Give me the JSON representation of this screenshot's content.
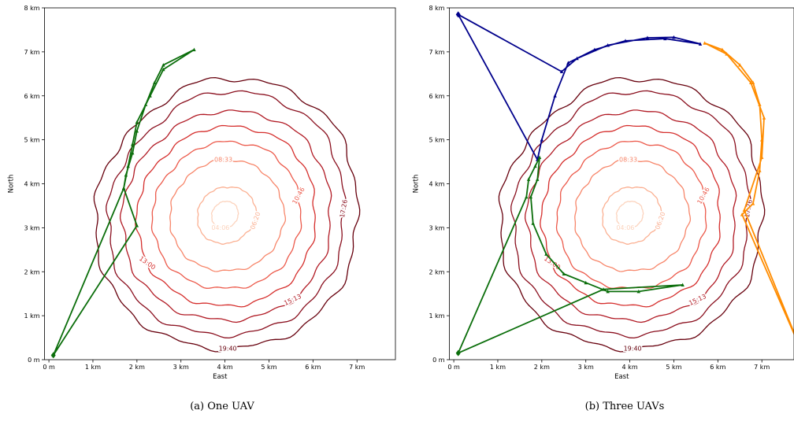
{
  "chart_data": [
    {
      "type": "line",
      "caption": "(a) One UAV",
      "xlabel": "East",
      "ylabel": "North",
      "xlim": [
        -0.1,
        7.9
      ],
      "ylim": [
        0,
        8
      ],
      "x_ticks": [
        "0 m",
        "1 km",
        "2 km",
        "3 km",
        "4 km",
        "5 km",
        "6 km",
        "7 km"
      ],
      "y_ticks": [
        "0 m",
        "1 km",
        "2 km",
        "3 km",
        "4 km",
        "5 km",
        "6 km",
        "7 km",
        "8 km"
      ],
      "contours": [
        {
          "label": "04:06",
          "color": "#fcd3bd",
          "r": [
            0.3,
            0.32,
            0.3,
            0.28,
            0.3,
            0.33,
            0.31,
            0.29
          ]
        },
        {
          "label": "06:20",
          "color": "#fbb092",
          "r": [
            0.72,
            0.7,
            0.62,
            0.6,
            0.62,
            0.68,
            0.66,
            0.64
          ]
        },
        {
          "label": "08:33",
          "color": "#f7866a",
          "r": [
            1.35,
            1.3,
            1.25,
            1.2,
            1.25,
            1.3,
            1.28,
            1.33
          ]
        },
        {
          "label": "10:46",
          "color": "#ec5a4b",
          "r": [
            1.72,
            1.75,
            1.65,
            1.58,
            1.65,
            1.72,
            1.68,
            1.74
          ]
        },
        {
          "label": "13:00",
          "color": "#d52e2c",
          "r": [
            2.05,
            2.12,
            2.0,
            1.92,
            2.0,
            2.1,
            2.08,
            2.12
          ]
        },
        {
          "label": "15:13",
          "color": "#b11a24",
          "r": [
            2.4,
            2.48,
            2.35,
            2.25,
            2.33,
            2.45,
            2.4,
            2.48
          ]
        },
        {
          "label": "17:26",
          "color": "#8a0f1e",
          "r": [
            2.7,
            2.9,
            2.8,
            2.55,
            2.65,
            2.8,
            2.74,
            2.78
          ]
        },
        {
          "label": "19:40",
          "color": "#67000d",
          "r": [
            3.0,
            3.2,
            3.1,
            2.85,
            2.95,
            3.1,
            3.05,
            3.1
          ]
        }
      ],
      "contour_center": [
        4.0,
        3.3
      ],
      "series": [
        {
          "color": "#0b6e0b",
          "markers": true,
          "x": [
            0.1,
            1.7,
            1.75,
            1.9,
            2.0,
            2.2,
            2.4,
            2.6,
            3.3,
            2.6,
            2.3,
            2.0,
            1.9,
            1.8,
            1.7,
            2.0,
            0.1
          ],
          "y": [
            0.1,
            3.9,
            4.2,
            4.7,
            5.2,
            5.8,
            6.3,
            6.7,
            7.05,
            6.6,
            6.0,
            5.4,
            4.9,
            4.4,
            3.9,
            3.05,
            0.1
          ]
        }
      ]
    },
    {
      "type": "line",
      "caption": "(b) Three UAVs",
      "xlabel": "East",
      "ylabel": "North",
      "xlim": [
        -0.1,
        7.9
      ],
      "ylim": [
        0,
        8
      ],
      "x_ticks": [
        "0 m",
        "1 km",
        "2 km",
        "3 km",
        "4 km",
        "5 km",
        "6 km",
        "7 km"
      ],
      "y_ticks": [
        "0 m",
        "1 km",
        "2 km",
        "3 km",
        "4 km",
        "5 km",
        "6 km",
        "7 km",
        "8 km"
      ],
      "contours": [
        {
          "label": "04:06",
          "color": "#fcd3bd",
          "r": [
            0.3,
            0.32,
            0.3,
            0.28,
            0.3,
            0.33,
            0.31,
            0.29
          ]
        },
        {
          "label": "06:20",
          "color": "#fbb092",
          "r": [
            0.72,
            0.7,
            0.62,
            0.6,
            0.62,
            0.68,
            0.66,
            0.64
          ]
        },
        {
          "label": "08:33",
          "color": "#f7866a",
          "r": [
            1.35,
            1.3,
            1.25,
            1.2,
            1.25,
            1.3,
            1.28,
            1.33
          ]
        },
        {
          "label": "10:46",
          "color": "#ec5a4b",
          "r": [
            1.72,
            1.75,
            1.65,
            1.58,
            1.65,
            1.72,
            1.68,
            1.74
          ]
        },
        {
          "label": "13:00",
          "color": "#d52e2c",
          "r": [
            2.05,
            2.12,
            2.0,
            1.92,
            2.0,
            2.1,
            2.08,
            2.12
          ]
        },
        {
          "label": "15:13",
          "color": "#b11a24",
          "r": [
            2.4,
            2.48,
            2.35,
            2.25,
            2.33,
            2.45,
            2.4,
            2.48
          ]
        },
        {
          "label": "17:26",
          "color": "#8a0f1e",
          "r": [
            2.7,
            2.9,
            2.8,
            2.55,
            2.65,
            2.8,
            2.74,
            2.78
          ]
        },
        {
          "label": "19:40",
          "color": "#67000d",
          "r": [
            3.0,
            3.2,
            3.1,
            2.85,
            2.95,
            3.1,
            3.05,
            3.1
          ]
        }
      ],
      "contour_center": [
        4.0,
        3.3
      ],
      "series": [
        {
          "color": "#00008b",
          "markers": true,
          "x": [
            0.1,
            2.45,
            2.8,
            3.5,
            4.4,
            5.0,
            5.6,
            4.8,
            3.9,
            3.2,
            2.6,
            2.3,
            2.0,
            1.9,
            0.1
          ],
          "y": [
            7.85,
            6.55,
            6.85,
            7.15,
            7.32,
            7.33,
            7.18,
            7.3,
            7.25,
            7.05,
            6.75,
            6.0,
            5.0,
            4.55,
            7.85
          ]
        },
        {
          "color": "#0b6e0b",
          "markers": true,
          "x": [
            0.1,
            1.65,
            1.7,
            1.85,
            1.95,
            1.9,
            1.75,
            1.8,
            2.1,
            2.5,
            3.0,
            3.5,
            4.2,
            5.2,
            3.4,
            0.1
          ],
          "y": [
            0.15,
            3.7,
            4.1,
            4.4,
            4.6,
            4.1,
            3.7,
            3.1,
            2.4,
            1.95,
            1.75,
            1.55,
            1.55,
            1.7,
            1.6,
            0.15
          ]
        },
        {
          "color": "#ff8c00",
          "markers": true,
          "x": [
            7.9,
            6.55,
            6.8,
            6.95,
            7.0,
            6.95,
            6.8,
            6.5,
            6.1,
            5.7,
            6.2,
            6.75,
            7.05,
            7.0,
            6.6,
            7.9
          ],
          "y": [
            0.2,
            3.3,
            3.55,
            4.3,
            5.0,
            5.8,
            6.3,
            6.7,
            7.05,
            7.2,
            6.95,
            6.3,
            5.5,
            4.6,
            3.4,
            0.2
          ]
        }
      ]
    }
  ]
}
